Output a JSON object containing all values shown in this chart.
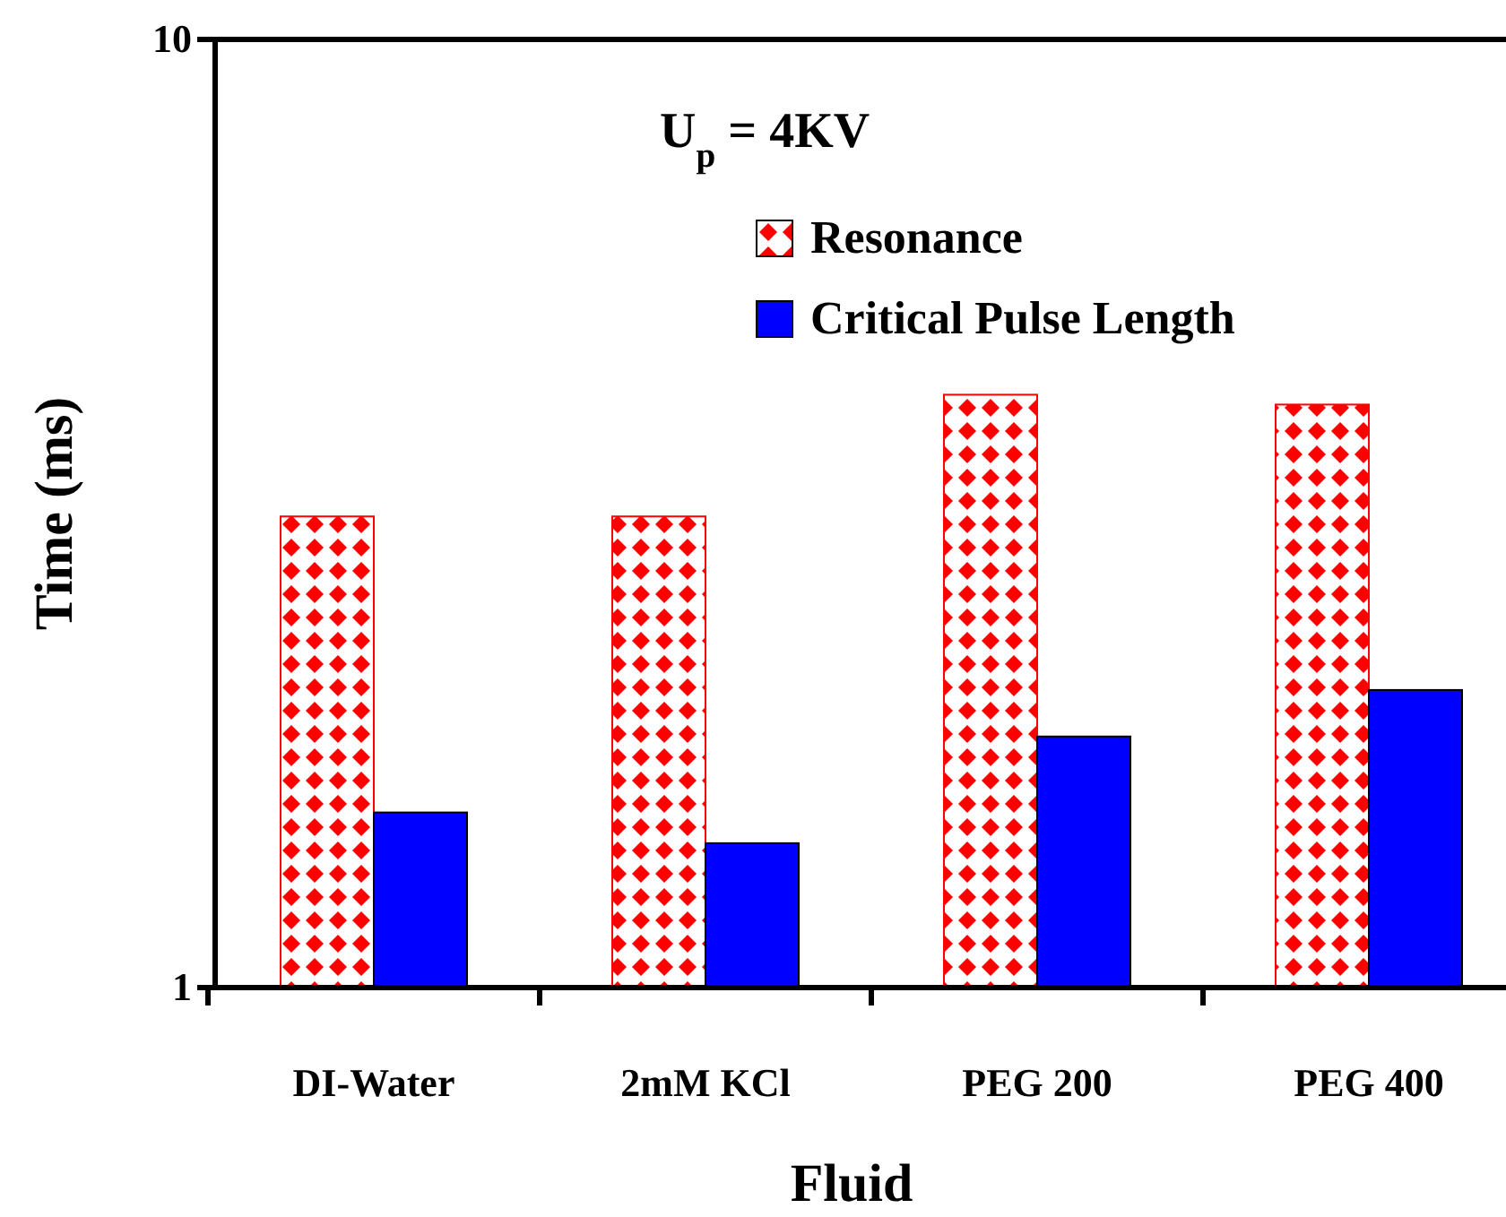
{
  "chart_data": {
    "type": "bar",
    "title": "U$_{p}$ = 4KV",
    "xlabel": "Fluid",
    "ylabel": "Time (ms)",
    "categories": [
      "DI-Water",
      "2mM KCl",
      "PEG 200",
      "PEG 400"
    ],
    "series": [
      {
        "name": "Resonance",
        "color": "#ff0000",
        "values": [
          3.14,
          3.14,
          4.22,
          4.12
        ]
      },
      {
        "name": "Critical Pulse Length",
        "color": "#0000ff",
        "values": [
          1.53,
          1.42,
          1.84,
          2.06
        ]
      }
    ],
    "log": true,
    "ylim": [
      1,
      10
    ],
    "yticks": [
      1,
      10
    ],
    "legend": "top right"
  }
}
